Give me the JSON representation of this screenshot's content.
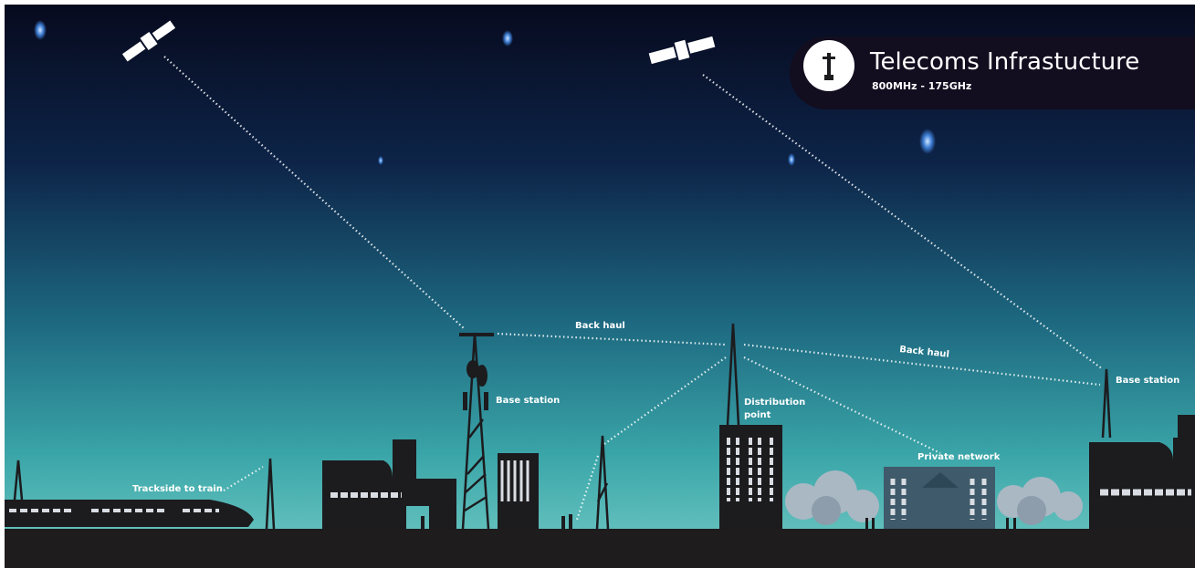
{
  "header": {
    "title": "Telecoms Infrastucture",
    "subtitle": "800MHz - 175GHz"
  },
  "labels": {
    "back_haul_left": "Back haul",
    "back_haul_right": "Back haul",
    "base_station_left": "Base station",
    "base_station_right": "Base station",
    "distribution_point": [
      "Distribution",
      "point"
    ],
    "private_network": "Private network",
    "trackside": "Trackside to train"
  }
}
